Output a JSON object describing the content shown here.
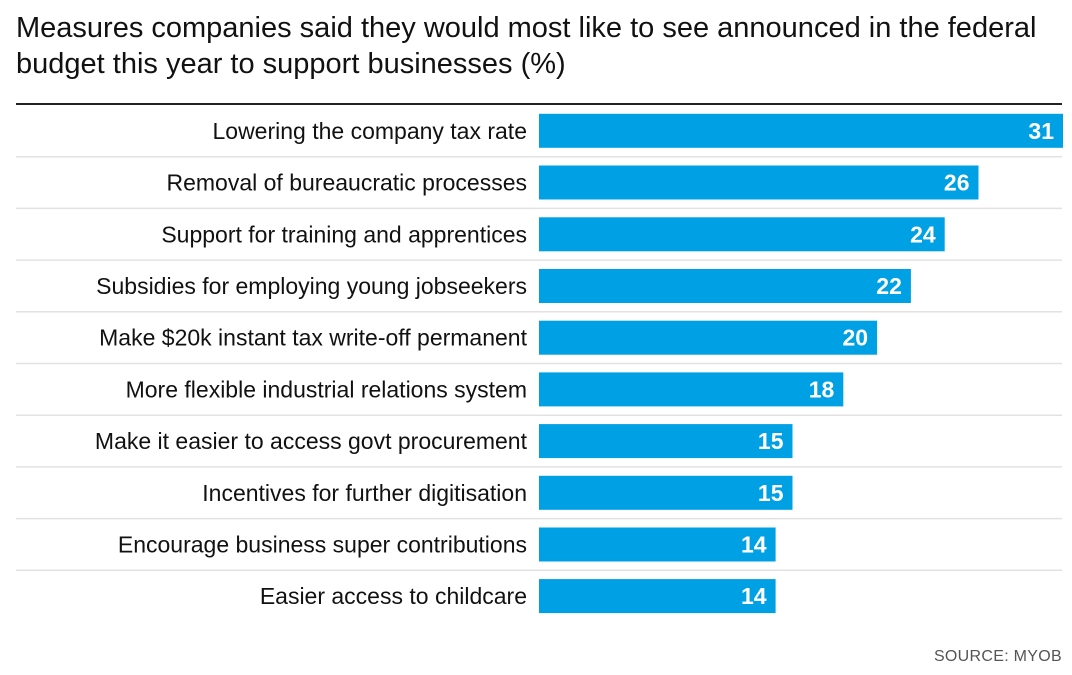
{
  "chart_data": {
    "type": "bar",
    "orientation": "horizontal",
    "title": "Measures companies said they would most like to see announced in the federal budget this year to support businesses (%)",
    "xlabel": "",
    "ylabel": "",
    "xlim": [
      0,
      31
    ],
    "grid": false,
    "legend": "none",
    "categories": [
      "Lowering the company tax rate",
      "Removal of bureaucratic processes",
      "Support for training and apprentices",
      "Subsidies for employing young jobseekers",
      "Make $20k instant tax write-off permanent",
      "More flexible industrial relations system",
      "Make it easier to access govt procurement",
      "Incentives for further digitisation",
      "Encourage business super contributions",
      "Easier access to childcare"
    ],
    "values": [
      31,
      26,
      24,
      22,
      20,
      18,
      15,
      15,
      14,
      14
    ],
    "bar_color": "#00a0e4",
    "source": "SOURCE: MYOB"
  }
}
